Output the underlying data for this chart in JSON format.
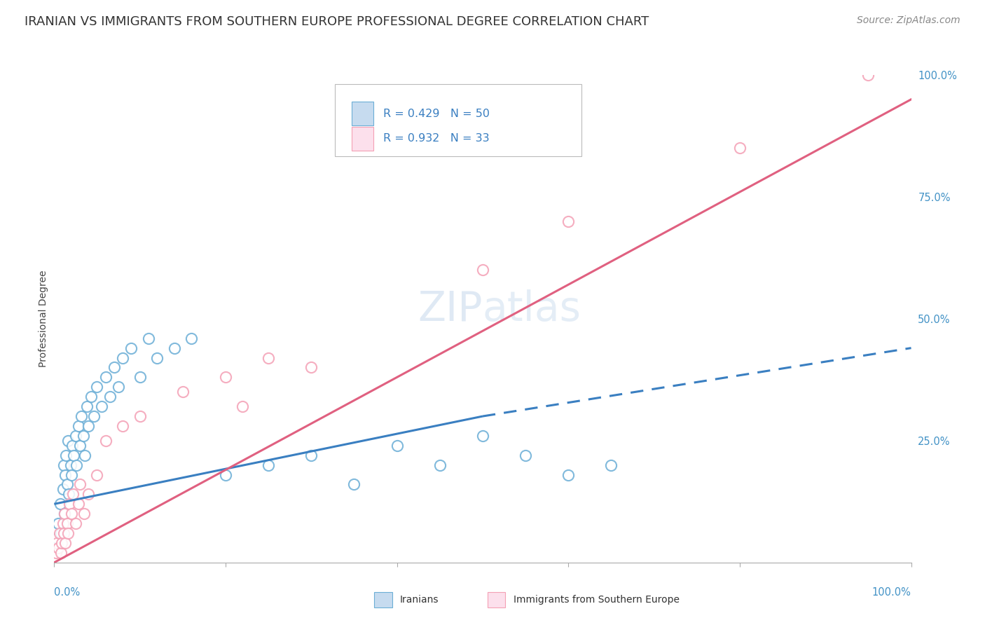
{
  "title": "IRANIAN VS IMMIGRANTS FROM SOUTHERN EUROPE PROFESSIONAL DEGREE CORRELATION CHART",
  "source": "Source: ZipAtlas.com",
  "ylabel": "Professional Degree",
  "legend_label1": "R = 0.429   N = 50",
  "legend_label2": "R = 0.932   N = 33",
  "legend_label_iranians": "Iranians",
  "legend_label_southern": "Immigrants from Southern Europe",
  "watermark": "ZIPatlas",
  "color_blue": "#6baed6",
  "color_pink": "#f4a0b5",
  "color_blue_light": "#c6dbef",
  "color_pink_light": "#fce0ec",
  "iranians_x": [
    0.3,
    0.5,
    0.7,
    0.8,
    1.0,
    1.1,
    1.2,
    1.3,
    1.4,
    1.5,
    1.6,
    1.7,
    1.9,
    2.0,
    2.1,
    2.3,
    2.5,
    2.6,
    2.8,
    3.0,
    3.2,
    3.4,
    3.6,
    3.8,
    4.0,
    4.3,
    4.6,
    5.0,
    5.5,
    6.0,
    6.5,
    7.0,
    7.5,
    8.0,
    9.0,
    10.0,
    11.0,
    12.0,
    14.0,
    16.0,
    20.0,
    25.0,
    30.0,
    35.0,
    40.0,
    45.0,
    50.0,
    55.0,
    60.0,
    65.0
  ],
  "iranians_y": [
    5.0,
    8.0,
    12.0,
    6.0,
    15.0,
    20.0,
    10.0,
    18.0,
    22.0,
    16.0,
    25.0,
    14.0,
    20.0,
    18.0,
    24.0,
    22.0,
    26.0,
    20.0,
    28.0,
    24.0,
    30.0,
    26.0,
    22.0,
    32.0,
    28.0,
    34.0,
    30.0,
    36.0,
    32.0,
    38.0,
    34.0,
    40.0,
    36.0,
    42.0,
    44.0,
    38.0,
    46.0,
    42.0,
    44.0,
    46.0,
    18.0,
    20.0,
    22.0,
    16.0,
    24.0,
    20.0,
    26.0,
    22.0,
    18.0,
    20.0
  ],
  "southern_x": [
    0.2,
    0.3,
    0.5,
    0.6,
    0.8,
    0.9,
    1.0,
    1.1,
    1.2,
    1.3,
    1.5,
    1.6,
    1.8,
    2.0,
    2.2,
    2.5,
    2.8,
    3.0,
    3.5,
    4.0,
    5.0,
    6.0,
    8.0,
    10.0,
    15.0,
    20.0,
    22.0,
    25.0,
    30.0,
    50.0,
    60.0,
    80.0,
    95.0
  ],
  "southern_y": [
    2.0,
    4.0,
    3.0,
    6.0,
    2.0,
    4.0,
    8.0,
    6.0,
    10.0,
    4.0,
    8.0,
    6.0,
    12.0,
    10.0,
    14.0,
    8.0,
    12.0,
    16.0,
    10.0,
    14.0,
    18.0,
    25.0,
    28.0,
    30.0,
    35.0,
    38.0,
    32.0,
    42.0,
    40.0,
    60.0,
    70.0,
    85.0,
    100.0
  ],
  "xlim": [
    0,
    100
  ],
  "ylim": [
    0,
    100
  ],
  "title_fontsize": 13,
  "source_fontsize": 10,
  "axis_label_fontsize": 10,
  "iran_trend_x0": 0,
  "iran_trend_x1": 50,
  "iran_trend_y0": 12,
  "iran_trend_y1": 30,
  "iran_dash_x0": 50,
  "iran_dash_x1": 100,
  "iran_dash_y0": 30,
  "iran_dash_y1": 44,
  "south_trend_x0": 0,
  "south_trend_x1": 100,
  "south_trend_y0": 0,
  "south_trend_y1": 95,
  "ytick_positions": [
    0,
    25,
    50,
    75,
    100
  ],
  "ytick_labels": [
    "",
    "25.0%",
    "50.0%",
    "75.0%",
    "100.0%"
  ]
}
